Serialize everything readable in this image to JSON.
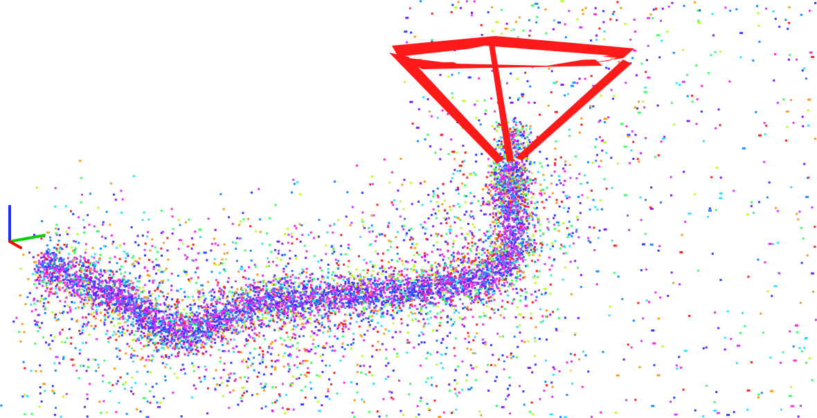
{
  "scene": {
    "background": "#ffffff",
    "point_palette": [
      "#7a1fff",
      "#2f3bff",
      "#ff2bd6",
      "#35e0ff",
      "#3cff6a",
      "#b8ff2a",
      "#ff9a1a",
      "#ff1f1f",
      "#1a8cff",
      "#d13dff"
    ],
    "camera_frustum_color": "#ff1a1a",
    "axes_gizmo": {
      "x_axis_color": "#ff0000",
      "y_axis_color": "#00d000",
      "z_axis_color": "#1a2cff"
    }
  }
}
